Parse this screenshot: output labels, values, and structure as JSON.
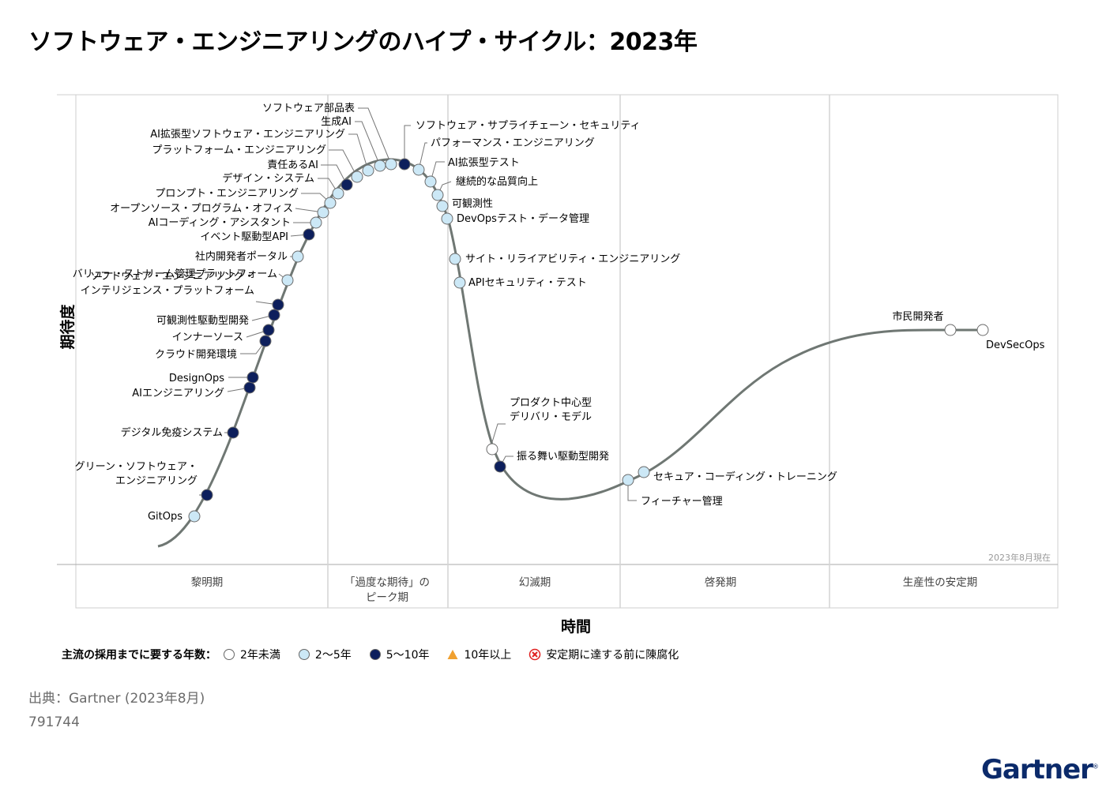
{
  "title": "ソフトウェア・エンジニアリングのハイプ・サイクル：2023年",
  "chart_data": {
    "type": "hype-cycle",
    "title": "ソフトウェア・エンジニアリングのハイプ・サイクル：2023年",
    "xlabel": "時間",
    "ylabel": "期待度",
    "as_of": "2023年8月現在",
    "phases": [
      "黎明期",
      "「過度な期待」の\nピーク期",
      "幻滅期",
      "啓発期",
      "生産性の安定期"
    ],
    "categories": {
      "lt2": {
        "label": "2年未満",
        "color": "#ffffff"
      },
      "2to5": {
        "label": "2～5年",
        "color": "#cce8f6"
      },
      "5to10": {
        "label": "5～10年",
        "color": "#0d1f5c"
      },
      "gt10": {
        "label": "10年以上",
        "color": "#f0a030"
      },
      "obsolete": {
        "label": "安定期に達する前に陳腐化",
        "color": "#e02020"
      }
    },
    "items": [
      {
        "name": "GitOps",
        "cat": "2to5"
      },
      {
        "name": "グリーン・ソフトウェア・\nエンジニアリング",
        "cat": "5to10"
      },
      {
        "name": "デジタル免疫システム",
        "cat": "5to10"
      },
      {
        "name": "AIエンジニアリング",
        "cat": "5to10"
      },
      {
        "name": "DesignOps",
        "cat": "5to10"
      },
      {
        "name": "クラウド開発環境",
        "cat": "5to10"
      },
      {
        "name": "インナーソース",
        "cat": "5to10"
      },
      {
        "name": "可観測性駆動型開発",
        "cat": "5to10"
      },
      {
        "name": "ソフトウェア・エンジニアリング・\nインテリジェンス・プラットフォーム",
        "cat": "5to10"
      },
      {
        "name": "バリュー・ストリーム管理プラットフォーム",
        "cat": "2to5"
      },
      {
        "name": "社内開発者ポータル",
        "cat": "2to5"
      },
      {
        "name": "イベント駆動型API",
        "cat": "5to10"
      },
      {
        "name": "AIコーディング・アシスタント",
        "cat": "2to5"
      },
      {
        "name": "オープンソース・プログラム・オフィス",
        "cat": "2to5"
      },
      {
        "name": "プロンプト・エンジニアリング",
        "cat": "2to5"
      },
      {
        "name": "デザイン・システム",
        "cat": "2to5"
      },
      {
        "name": "責任あるAI",
        "cat": "5to10"
      },
      {
        "name": "プラットフォーム・エンジニアリング",
        "cat": "2to5"
      },
      {
        "name": "AI拡張型ソフトウェア・エンジニアリング",
        "cat": "2to5"
      },
      {
        "name": "生成AI",
        "cat": "2to5"
      },
      {
        "name": "ソフトウェア部品表",
        "cat": "2to5"
      },
      {
        "name": "ソフトウェア・サプライチェーン・セキュリティ",
        "cat": "5to10"
      },
      {
        "name": "パフォーマンス・エンジニアリング",
        "cat": "2to5"
      },
      {
        "name": "AI拡張型テスト",
        "cat": "2to5"
      },
      {
        "name": "継続的な品質向上",
        "cat": "2to5"
      },
      {
        "name": "可観測性",
        "cat": "2to5"
      },
      {
        "name": "DevOpsテスト・データ管理",
        "cat": "2to5"
      },
      {
        "name": "サイト・リライアビリティ・エンジニアリング",
        "cat": "2to5"
      },
      {
        "name": "APIセキュリティ・テスト",
        "cat": "2to5"
      },
      {
        "name": "プロダクト中心型\nデリバリ・モデル",
        "cat": "lt2"
      },
      {
        "name": "振る舞い駆動型開発",
        "cat": "5to10"
      },
      {
        "name": "フィーチャー管理",
        "cat": "2to5"
      },
      {
        "name": "セキュア・コーディング・トレーニング",
        "cat": "2to5"
      },
      {
        "name": "市民開発者",
        "cat": "lt2"
      },
      {
        "name": "DevSecOps",
        "cat": "lt2"
      }
    ]
  },
  "legend": {
    "title": "主流の採用までに要する年数：",
    "items": [
      {
        "icon": "empty-circle-icon",
        "label": "2年未満"
      },
      {
        "icon": "light-blue-circle-icon",
        "label": "2～5年"
      },
      {
        "icon": "navy-circle-icon",
        "label": "5～10年"
      },
      {
        "icon": "orange-triangle-icon",
        "label": "10年以上"
      },
      {
        "icon": "red-x-circle-icon",
        "label": "安定期に達する前に陳腐化"
      }
    ]
  },
  "source": "出典：Gartner (2023年8月)",
  "doc_id": "791744",
  "logo": "Gartner"
}
